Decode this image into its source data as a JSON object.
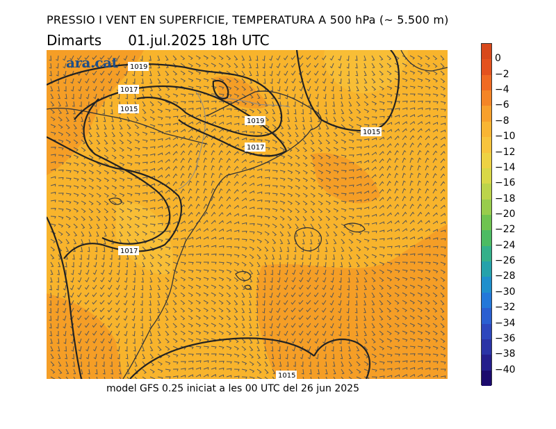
{
  "header": {
    "title": "PRESSIO I VENT EN SUPERFICIE, TEMPERATURA A 500 hPa (~ 5.500 m)",
    "day": "Dimarts",
    "datetime": "01.jul.2025 18h UTC"
  },
  "footer": {
    "text": "model GFS 0.25 iniciat a les 00 UTC del 26 jun 2025"
  },
  "logo": {
    "text": "ara.cat"
  },
  "map": {
    "isobar_labels": [
      "1019",
      "1017",
      "1015",
      "1019",
      "1017",
      "1015",
      "1017",
      "1015"
    ],
    "temperature_field_colors": {
      "dominant": "#f8b42c",
      "warmer": "#f49a26",
      "cooler": "#f8c13a"
    },
    "wind_barb_color": "#555555",
    "isobar_color": "#222222",
    "coastline_color": "#333333"
  },
  "colorbar": {
    "labels": [
      "0",
      "−2",
      "−4",
      "−6",
      "−8",
      "−10",
      "−12",
      "−14",
      "−16",
      "−18",
      "−20",
      "−22",
      "−24",
      "−26",
      "−28",
      "−30",
      "−32",
      "−34",
      "−36",
      "−38",
      "−40"
    ],
    "colors": [
      "#e4521e",
      "#f06a22",
      "#f48526",
      "#f8a02c",
      "#f9b533",
      "#f8c43c",
      "#eed243",
      "#d9d847",
      "#bcd44a",
      "#98cc4c",
      "#6fc350",
      "#4cbb63",
      "#34b08a",
      "#25a2ab",
      "#1f8fcc",
      "#2378d9",
      "#2a5fd1",
      "#2d47bd",
      "#2a33a6",
      "#241e8c",
      "#1b0a6d"
    ]
  }
}
